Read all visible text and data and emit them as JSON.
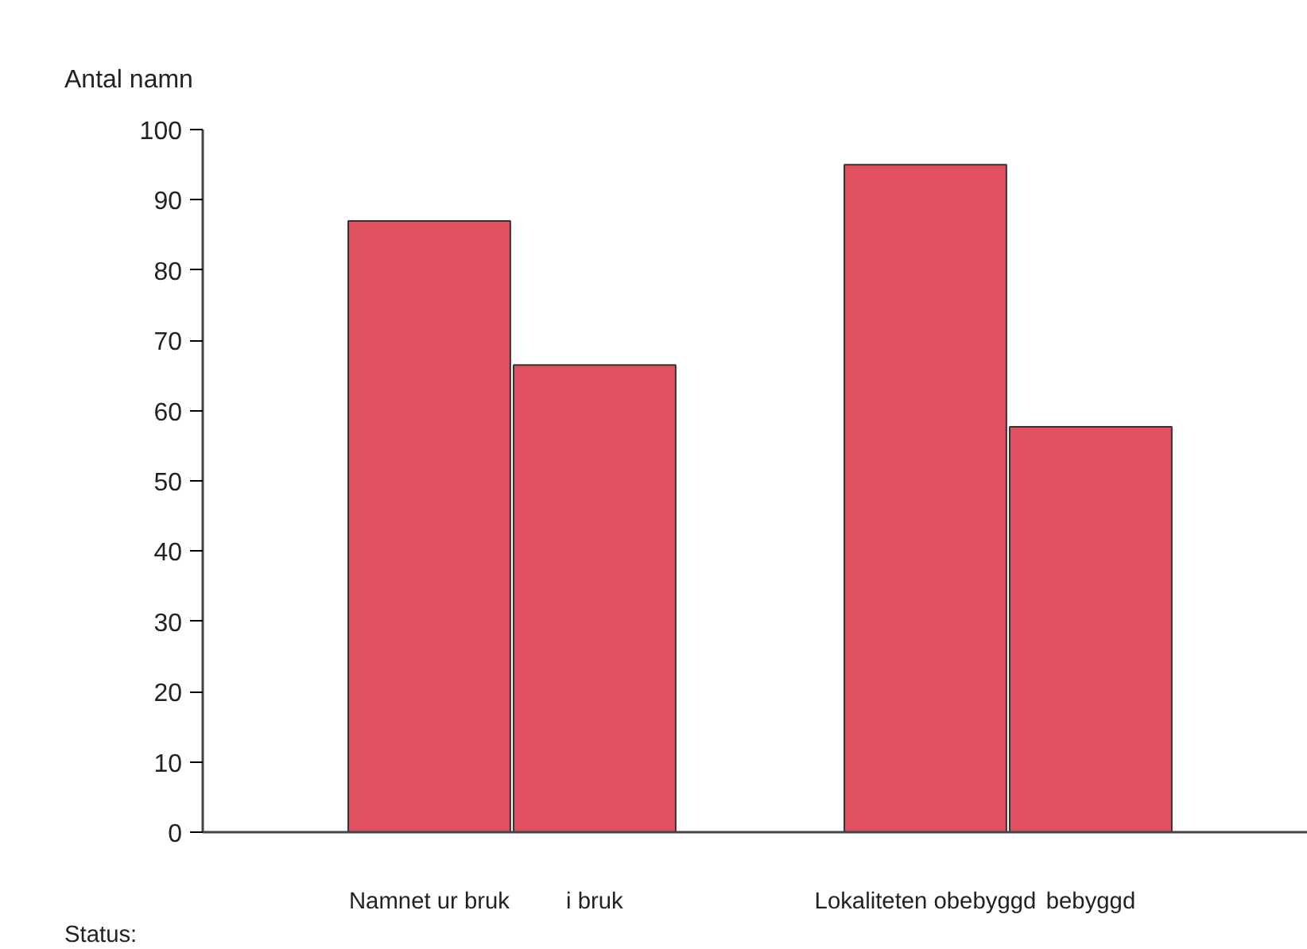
{
  "chart_data": {
    "type": "bar",
    "ylabel": "Antal namn",
    "xlabel": "Status:",
    "categories": [
      "Namnet ur bruk",
      "i bruk",
      null,
      "Lokaliteten obebyggd",
      "bebyggd"
    ],
    "values": [
      87,
      66.5,
      null,
      95,
      57.7
    ],
    "color": "#e2505f",
    "ylim": [
      0,
      100
    ],
    "yticks": [
      0,
      10,
      20,
      30,
      40,
      50,
      60,
      70,
      80,
      90,
      100
    ],
    "grid": false
  }
}
